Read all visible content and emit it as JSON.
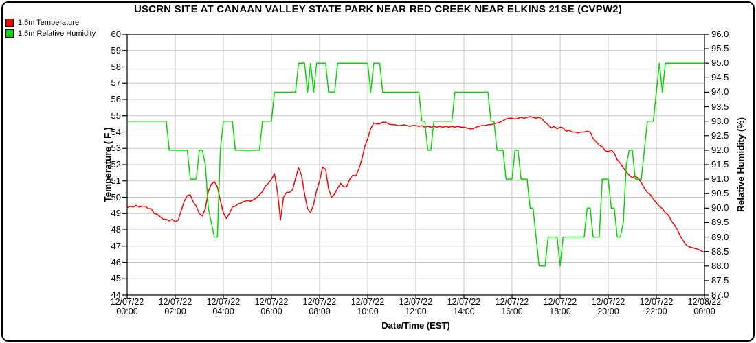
{
  "title": "USCRN SITE AT CANAAN VALLEY STATE PARK NEAR RED CREEK NEAR ELKINS 21SE (CVPW2)",
  "legend": {
    "items": [
      {
        "label": "1.5m Temperature",
        "color": "#fa0000"
      },
      {
        "label": "1.5m Relative Humidity",
        "color": "#00d800"
      }
    ]
  },
  "axes": {
    "y_left": {
      "title": "Temperature ( F )",
      "min": 44,
      "max": 60,
      "tick_step": 1,
      "tick_labels": [
        "60",
        "59",
        "58",
        "57",
        "56",
        "55",
        "54",
        "53",
        "52",
        "51",
        "50",
        "49",
        "48",
        "47",
        "46",
        "45",
        "44"
      ]
    },
    "y_right": {
      "title": "Relative Humidity (%)",
      "min": 87.0,
      "max": 96.0,
      "tick_step": 0.5,
      "tick_labels": [
        "96.0",
        "95.5",
        "95.0",
        "94.5",
        "94.0",
        "93.5",
        "93.0",
        "92.5",
        "92.0",
        "91.5",
        "91.0",
        "90.5",
        "90.0",
        "89.5",
        "89.0",
        "88.5",
        "88.0",
        "87.5",
        "87.0"
      ]
    },
    "x": {
      "title": "Date/Time (EST)",
      "ticks": [
        {
          "date": "12/07/22",
          "time": "00:00"
        },
        {
          "date": "12/07/22",
          "time": "02:00"
        },
        {
          "date": "12/07/22",
          "time": "04:00"
        },
        {
          "date": "12/07/22",
          "time": "06:00"
        },
        {
          "date": "12/07/22",
          "time": "08:00"
        },
        {
          "date": "12/07/22",
          "time": "10:00"
        },
        {
          "date": "12/07/22",
          "time": "12:00"
        },
        {
          "date": "12/07/22",
          "time": "14:00"
        },
        {
          "date": "12/07/22",
          "time": "16:00"
        },
        {
          "date": "12/07/22",
          "time": "18:00"
        },
        {
          "date": "12/07/22",
          "time": "20:00"
        },
        {
          "date": "12/07/22",
          "time": "22:00"
        },
        {
          "date": "12/08/22",
          "time": "00:00"
        }
      ]
    }
  },
  "colors": {
    "temperature": "#fa0000",
    "humidity": "#00d800",
    "grid": "#c6c6c6",
    "axis": "#000000",
    "background": "#ffffff"
  },
  "chart_data": {
    "type": "line",
    "title": "USCRN SITE AT CANAAN VALLEY STATE PARK NEAR RED CREEK NEAR ELKINS 21SE (CVPW2)",
    "xlabel": "Date/Time (EST)",
    "x_start_label": "12/07/22 00:00",
    "x_end_label": "12/08/22 00:00",
    "x_start_hour": 0,
    "x_step_hours": 0.125,
    "x_end_hour": 24,
    "y_left_label": "Temperature ( F )",
    "y_left_range": [
      44,
      60
    ],
    "y_right_label": "Relative Humidity (%)",
    "y_right_range": [
      87.0,
      96.0
    ],
    "grid": true,
    "legend_position": "top-left",
    "series": [
      {
        "name": "1.5m Temperature",
        "axis": "left",
        "unit": "F",
        "color": "#fa0000",
        "values": [
          49.35,
          49.45,
          49.4,
          49.5,
          49.4,
          49.45,
          49.45,
          49.3,
          49.3,
          49.0,
          48.95,
          48.8,
          48.65,
          48.65,
          48.55,
          48.65,
          48.5,
          48.6,
          49.2,
          49.75,
          50.1,
          50.15,
          49.7,
          49.45,
          49.0,
          48.85,
          49.3,
          50.35,
          50.8,
          50.95,
          50.65,
          49.8,
          49.05,
          48.7,
          49.0,
          49.4,
          49.45,
          49.6,
          49.65,
          49.75,
          49.8,
          49.75,
          49.85,
          49.95,
          50.15,
          50.35,
          50.7,
          50.85,
          51.1,
          51.45,
          50.3,
          48.6,
          50.0,
          50.3,
          50.3,
          50.45,
          51.15,
          51.8,
          51.35,
          50.2,
          49.3,
          49.05,
          49.55,
          50.4,
          51.0,
          51.85,
          51.7,
          50.5,
          50.0,
          50.2,
          50.55,
          50.85,
          50.65,
          50.65,
          51.1,
          51.35,
          51.3,
          51.7,
          52.3,
          53.1,
          53.6,
          54.2,
          54.55,
          54.5,
          54.5,
          54.6,
          54.6,
          54.5,
          54.45,
          54.45,
          54.4,
          54.4,
          54.45,
          54.4,
          54.35,
          54.4,
          54.4,
          54.35,
          54.4,
          54.3,
          54.35,
          54.3,
          54.35,
          54.3,
          54.35,
          54.3,
          54.35,
          54.3,
          54.35,
          54.3,
          54.35,
          54.3,
          54.3,
          54.25,
          54.2,
          54.2,
          54.3,
          54.35,
          54.4,
          54.4,
          54.45,
          54.45,
          54.5,
          54.55,
          54.6,
          54.7,
          54.8,
          54.85,
          54.85,
          54.8,
          54.85,
          54.9,
          54.85,
          54.9,
          54.95,
          54.9,
          54.85,
          54.9,
          54.8,
          54.6,
          54.45,
          54.25,
          54.35,
          54.2,
          54.3,
          54.25,
          54.05,
          54.1,
          54.0,
          54.0,
          53.95,
          54.0,
          54.0,
          54.05,
          54.0,
          53.6,
          53.4,
          53.2,
          53.1,
          52.85,
          52.8,
          52.9,
          52.7,
          52.3,
          52.1,
          51.8,
          51.55,
          51.35,
          51.2,
          51.3,
          51.15,
          50.9,
          50.55,
          50.3,
          50.15,
          49.9,
          49.65,
          49.45,
          49.3,
          49.05,
          48.9,
          48.55,
          48.3,
          48.0,
          47.6,
          47.3,
          47.05,
          46.95,
          46.9,
          46.85,
          46.8,
          46.7,
          46.6
        ]
      },
      {
        "name": "1.5m Relative Humidity",
        "axis": "right",
        "unit": "%",
        "color": "#00d800",
        "values": [
          93.0,
          93.0,
          93.0,
          93.0,
          93.0,
          93.0,
          93.0,
          93.0,
          93.0,
          93.0,
          93.0,
          93.0,
          93.0,
          93.0,
          92.0,
          92.0,
          92.0,
          92.0,
          92.0,
          92.0,
          92.0,
          91.0,
          91.0,
          91.0,
          92.0,
          92.0,
          91.5,
          90.0,
          89.5,
          89.0,
          89.0,
          92.0,
          93.0,
          93.0,
          93.0,
          93.0,
          92.0,
          92.0,
          92.0,
          92.0,
          92.0,
          92.0,
          92.0,
          92.0,
          92.0,
          93.0,
          93.0,
          93.0,
          93.0,
          94.0,
          94.0,
          94.0,
          94.0,
          94.0,
          94.0,
          94.0,
          94.0,
          95.0,
          95.0,
          95.0,
          94.0,
          95.0,
          94.0,
          95.0,
          95.0,
          95.0,
          95.0,
          94.0,
          94.0,
          94.0,
          95.0,
          95.0,
          95.0,
          95.0,
          95.0,
          95.0,
          95.0,
          95.0,
          95.0,
          95.0,
          95.0,
          94.0,
          95.0,
          95.0,
          95.0,
          94.0,
          94.0,
          94.0,
          94.0,
          94.0,
          94.0,
          94.0,
          94.0,
          94.0,
          94.0,
          94.0,
          94.0,
          94.0,
          93.0,
          93.0,
          92.0,
          92.0,
          93.0,
          93.0,
          93.0,
          93.0,
          93.0,
          93.0,
          93.0,
          94.0,
          94.0,
          94.0,
          94.0,
          94.0,
          94.0,
          94.0,
          94.0,
          94.0,
          94.0,
          94.0,
          94.0,
          93.0,
          93.0,
          92.0,
          92.0,
          92.0,
          91.0,
          91.0,
          91.0,
          92.0,
          92.0,
          91.0,
          91.0,
          91.0,
          90.0,
          90.0,
          89.0,
          88.0,
          88.0,
          88.0,
          89.0,
          89.0,
          89.0,
          89.0,
          88.0,
          89.0,
          89.0,
          89.0,
          89.0,
          89.0,
          89.0,
          89.0,
          89.0,
          90.0,
          90.0,
          89.0,
          89.0,
          89.0,
          91.0,
          91.0,
          91.0,
          90.0,
          90.0,
          89.0,
          89.0,
          89.5,
          91.5,
          92.0,
          92.0,
          91.0,
          91.0,
          91.0,
          92.0,
          93.0,
          93.0,
          93.0,
          94.0,
          95.0,
          94.0,
          95.0,
          95.0,
          95.0,
          95.0,
          95.0,
          95.0,
          95.0,
          95.0,
          95.0,
          95.0,
          95.0,
          95.0,
          95.0,
          95.0
        ]
      }
    ]
  }
}
